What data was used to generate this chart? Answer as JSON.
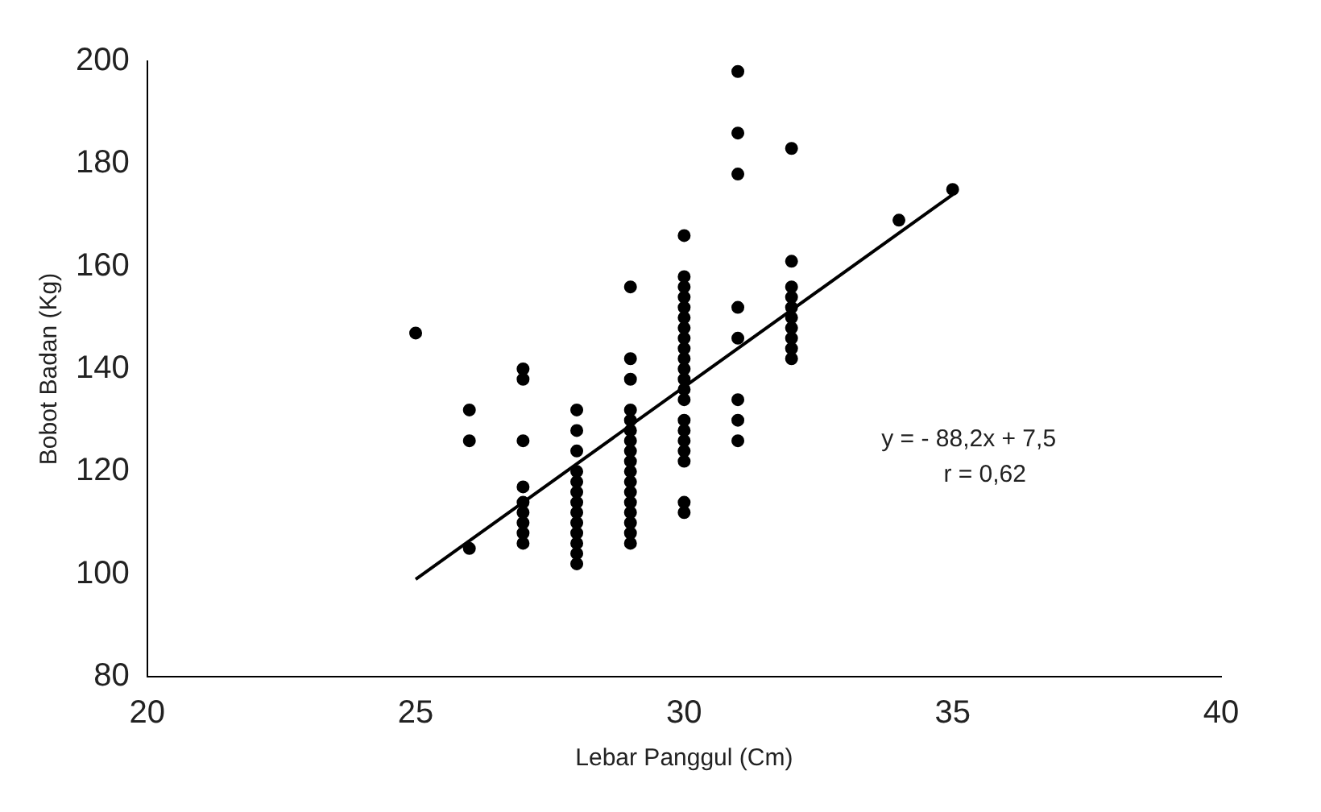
{
  "chart_data": {
    "type": "scatter",
    "xlabel": "Lebar Panggul (Cm)",
    "ylabel": "Bobot Badan (Kg)",
    "xlim": [
      20,
      40
    ],
    "xticks": [
      20,
      25,
      30,
      35,
      40
    ],
    "ylim": [
      80,
      200
    ],
    "yticks": [
      80,
      100,
      120,
      140,
      160,
      180,
      200
    ],
    "grid": false,
    "legend": false,
    "marker": "circle",
    "annotations": [
      "y = - 88,2x + 7,5",
      "r = 0,62"
    ],
    "series": [
      {
        "color": "#000000",
        "x": [
          25,
          26,
          26,
          26,
          27,
          27,
          27,
          27,
          27,
          27,
          27,
          27,
          27,
          28,
          28,
          28,
          28,
          28,
          28,
          28,
          28,
          28,
          28,
          28,
          28,
          28,
          29,
          29,
          29,
          29,
          29,
          29,
          29,
          29,
          29,
          29,
          29,
          29,
          29,
          29,
          29,
          29,
          29,
          30,
          30,
          30,
          30,
          30,
          30,
          30,
          30,
          30,
          30,
          30,
          30,
          30,
          30,
          30,
          30,
          30,
          30,
          30,
          30,
          30,
          31,
          31,
          31,
          31,
          31,
          31,
          31,
          31,
          32,
          32,
          32,
          32,
          32,
          32,
          32,
          32,
          32,
          32,
          34,
          35
        ],
        "values": [
          147,
          132,
          126,
          105,
          140,
          138,
          126,
          117,
          114,
          112,
          110,
          108,
          106,
          132,
          128,
          124,
          120,
          118,
          116,
          114,
          112,
          110,
          108,
          106,
          104,
          102,
          156,
          142,
          138,
          132,
          130,
          128,
          126,
          124,
          122,
          120,
          118,
          116,
          114,
          112,
          110,
          108,
          106,
          166,
          158,
          156,
          154,
          152,
          150,
          148,
          146,
          144,
          142,
          140,
          138,
          136,
          134,
          130,
          128,
          126,
          124,
          122,
          114,
          112,
          198,
          186,
          178,
          152,
          146,
          134,
          130,
          126,
          183,
          161,
          156,
          154,
          152,
          150,
          148,
          146,
          144,
          142,
          169,
          175
        ]
      },
      {
        "type": "line",
        "color": "#000000",
        "marker": "none",
        "x": [
          25,
          35
        ],
        "values": [
          99,
          174
        ]
      }
    ]
  }
}
